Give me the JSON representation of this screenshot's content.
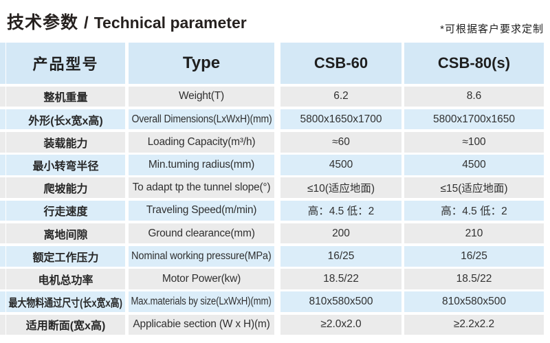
{
  "page": {
    "title_zh": "技术参数",
    "title_sep": "/",
    "title_en": "Technical parameter",
    "note": "*可根据客户要求定制"
  },
  "colors": {
    "header_bg": "#d4e8f6",
    "row_blue_bg": "#dbedf9",
    "row_gray_bg": "#ebebeb",
    "text": "#262626"
  },
  "table": {
    "header": {
      "col_label_zh": "产品型号",
      "col_label_en": "Type",
      "col_model_1": "CSB-60",
      "col_model_2": "CSB-80(s)"
    },
    "rows": [
      {
        "label_zh": "整机重量",
        "label_en": "Weight(T)",
        "csb60": "6.2",
        "csb80": "8.6"
      },
      {
        "label_zh": "外形(长x宽x高)",
        "label_en": "Overall Dimensions(LxWxH)(mm)",
        "csb60": "5800x1650x1700",
        "csb80": "5800x1700x1650"
      },
      {
        "label_zh": "装载能力",
        "label_en": "Loading Capacity(m³/h)",
        "csb60": "≈60",
        "csb80": "≈100"
      },
      {
        "label_zh": "最小转弯半径",
        "label_en": "Min.tuming radius(mm)",
        "csb60": "4500",
        "csb80": "4500"
      },
      {
        "label_zh": "爬坡能力",
        "label_en": "To adapt tp the tunnel slope(°)",
        "csb60": "≤10(适应地面)",
        "csb80": "≤15(适应地面)"
      },
      {
        "label_zh": "行走速度",
        "label_en": "Traveling Speed(m/min)",
        "csb60": "高：4.5 低：2",
        "csb80": "高：4.5 低：2"
      },
      {
        "label_zh": "离地间隙",
        "label_en": "Ground clearance(mm)",
        "csb60": "200",
        "csb80": "210"
      },
      {
        "label_zh": "额定工作压力",
        "label_en": "Nominal working pressure(MPa)",
        "csb60": "16/25",
        "csb80": "16/25"
      },
      {
        "label_zh": "电机总功率",
        "label_en": "Motor Power(kw)",
        "csb60": "18.5/22",
        "csb80": "18.5/22"
      },
      {
        "label_zh": "最大物料通过尺寸(长x宽x高)",
        "label_en": "Max.materials by size(LxWxH)(mm)",
        "csb60": "810x580x500",
        "csb80": "810x580x500"
      },
      {
        "label_zh": "适用断面(宽x高)",
        "label_en": "Applicabie section (W x H)(m)",
        "csb60": "≥2.0x2.0",
        "csb80": "≥2.2x2.2"
      }
    ]
  }
}
